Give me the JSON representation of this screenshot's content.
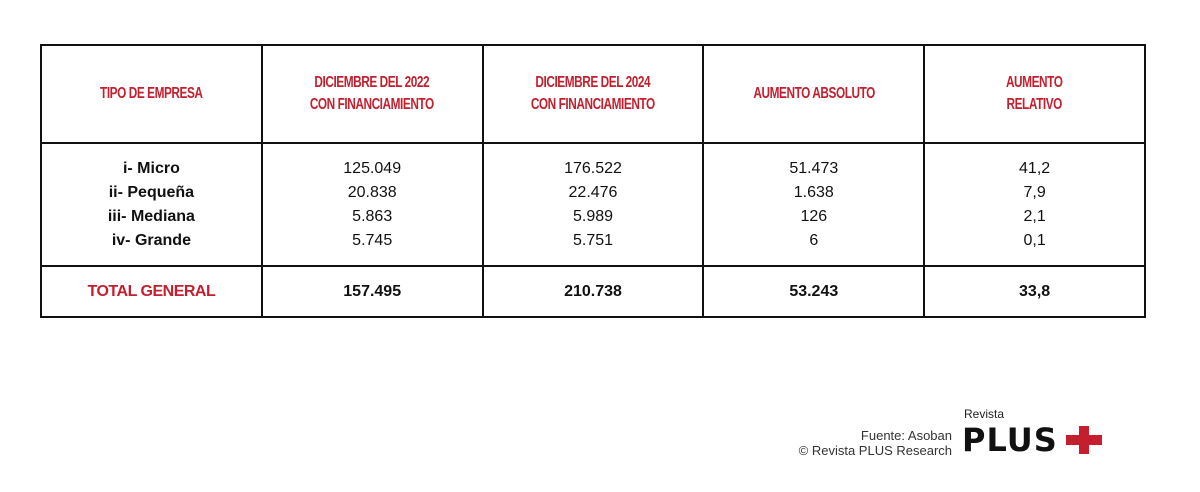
{
  "table": {
    "headers": [
      "TIPO DE EMPRESA",
      "DICIEMBRE DEL 2022 CON FINANCIAMIENTO",
      "DICIEMBRE DEL 2024 CON FINANCIAMIENTO",
      "AUMENTO ABSOLUTO",
      "AUMENTO RELATIVO"
    ],
    "header_lines": [
      [
        "TIPO DE EMPRESA"
      ],
      [
        "DICIEMBRE DEL 2022",
        "CON FINANCIAMIENTO"
      ],
      [
        "DICIEMBRE DEL 2024",
        "CON FINANCIAMIENTO"
      ],
      [
        "AUMENTO ABSOLUTO"
      ],
      [
        "AUMENTO",
        "RELATIVO"
      ]
    ],
    "rows": [
      [
        "i- Micro",
        "125.049",
        "176.522",
        "51.473",
        "41,2"
      ],
      [
        "ii- Pequeña",
        "20.838",
        "22.476",
        "1.638",
        "7,9"
      ],
      [
        "iii- Mediana",
        "5.863",
        "5.989",
        "126",
        "2,1"
      ],
      [
        "iv- Grande",
        "5.745",
        "5.751",
        "6",
        "0,1"
      ]
    ],
    "total": [
      "TOTAL GENERAL",
      "157.495",
      "210.738",
      "53.243",
      "33,8"
    ]
  },
  "footer": {
    "source": "Fuente: Asoban",
    "copyright": "© Revista PLUS Research"
  },
  "logo": {
    "small": "Revista",
    "big": "PLUS"
  },
  "colors": {
    "accent": "#c41f2e",
    "border": "#111111"
  }
}
